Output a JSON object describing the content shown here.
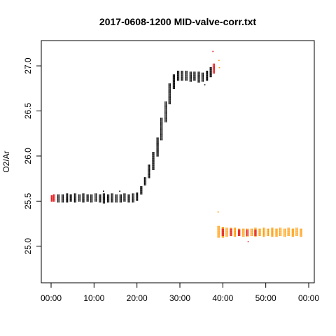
{
  "chart_data": {
    "type": "scatter",
    "title": "2017-0608-1200 MID-valve-corr.txt",
    "xlabel": "",
    "ylabel": "O2/Ar",
    "xlim": [
      0,
      60
    ],
    "ylim": [
      24.68,
      27.28
    ],
    "x_ticks": [
      0,
      10,
      20,
      30,
      40,
      50,
      60
    ],
    "x_tick_labels": [
      "00:00",
      "10:00",
      "20:00",
      "30:00",
      "40:00",
      "50:00",
      "00:00"
    ],
    "y_ticks": [
      25.0,
      25.5,
      26.0,
      26.5,
      27.0
    ],
    "y_tick_labels": [
      "25.0",
      "25.5",
      "26.0",
      "26.5",
      "27.0"
    ],
    "grid": false,
    "legend": "none",
    "colors": {
      "primary": "#000000",
      "start_end": "#e41a1c",
      "after_switch": "#ff9900",
      "after_switch_alt": "#e41a1c"
    },
    "series": [
      {
        "color": "#000000",
        "clusters": [
          {
            "x": 1.7,
            "ymin": 25.49,
            "ymax": 25.57
          },
          {
            "x": 2.7,
            "ymin": 25.49,
            "ymax": 25.57
          },
          {
            "x": 3.7,
            "ymin": 25.49,
            "ymax": 25.58
          },
          {
            "x": 4.6,
            "ymin": 25.5,
            "ymax": 25.57
          },
          {
            "x": 5.6,
            "ymin": 25.49,
            "ymax": 25.58
          },
          {
            "x": 6.6,
            "ymin": 25.5,
            "ymax": 25.57
          },
          {
            "x": 7.5,
            "ymin": 25.49,
            "ymax": 25.58
          },
          {
            "x": 8.5,
            "ymin": 25.5,
            "ymax": 25.57
          },
          {
            "x": 9.4,
            "ymin": 25.49,
            "ymax": 25.57
          },
          {
            "x": 10.4,
            "ymin": 25.5,
            "ymax": 25.58
          },
          {
            "x": 11.4,
            "ymin": 25.49,
            "ymax": 25.57
          },
          {
            "x": 12.3,
            "ymin": 25.48,
            "ymax": 25.58
          },
          {
            "x": 13.3,
            "ymin": 25.49,
            "ymax": 25.57
          },
          {
            "x": 14.2,
            "ymin": 25.49,
            "ymax": 25.58
          },
          {
            "x": 15.2,
            "ymin": 25.49,
            "ymax": 25.57
          },
          {
            "x": 16.2,
            "ymin": 25.49,
            "ymax": 25.57
          },
          {
            "x": 17.1,
            "ymin": 25.5,
            "ymax": 25.58
          },
          {
            "x": 18.1,
            "ymin": 25.49,
            "ymax": 25.57
          },
          {
            "x": 19.1,
            "ymin": 25.49,
            "ymax": 25.58
          },
          {
            "x": 20.0,
            "ymin": 25.51,
            "ymax": 25.59
          },
          {
            "x": 21.0,
            "ymin": 25.58,
            "ymax": 25.66
          },
          {
            "x": 21.9,
            "ymin": 25.68,
            "ymax": 25.76
          },
          {
            "x": 22.8,
            "ymin": 25.76,
            "ymax": 25.9
          },
          {
            "x": 23.8,
            "ymin": 25.85,
            "ymax": 26.04
          },
          {
            "x": 24.8,
            "ymin": 26.0,
            "ymax": 26.2
          },
          {
            "x": 25.7,
            "ymin": 26.18,
            "ymax": 26.42
          },
          {
            "x": 26.7,
            "ymin": 26.38,
            "ymax": 26.6
          },
          {
            "x": 27.6,
            "ymin": 26.58,
            "ymax": 26.8
          },
          {
            "x": 28.6,
            "ymin": 26.75,
            "ymax": 26.9
          },
          {
            "x": 29.6,
            "ymin": 26.84,
            "ymax": 26.94
          },
          {
            "x": 30.5,
            "ymin": 26.84,
            "ymax": 26.94
          },
          {
            "x": 31.5,
            "ymin": 26.84,
            "ymax": 26.94
          },
          {
            "x": 32.5,
            "ymin": 26.83,
            "ymax": 26.93
          },
          {
            "x": 33.4,
            "ymin": 26.84,
            "ymax": 26.93
          },
          {
            "x": 34.4,
            "ymin": 26.82,
            "ymax": 26.93
          },
          {
            "x": 35.3,
            "ymin": 26.83,
            "ymax": 26.92
          },
          {
            "x": 36.3,
            "ymin": 26.84,
            "ymax": 26.94
          },
          {
            "x": 37.2,
            "ymin": 26.88,
            "ymax": 26.98
          }
        ]
      },
      {
        "color": "#e41a1c",
        "clusters": [
          {
            "x": 0.2,
            "ymin": 25.5,
            "ymax": 25.56
          },
          {
            "x": 0.7,
            "ymin": 25.5,
            "ymax": 25.57
          },
          {
            "x": 37.9,
            "ymin": 26.92,
            "ymax": 27.02
          }
        ]
      },
      {
        "color": "#ff9900",
        "clusters": [
          {
            "x": 39.0,
            "ymin": 25.1,
            "ymax": 25.22
          },
          {
            "x": 40.0,
            "ymin": 25.1,
            "ymax": 25.21
          },
          {
            "x": 40.9,
            "ymin": 25.11,
            "ymax": 25.2
          },
          {
            "x": 41.9,
            "ymin": 25.12,
            "ymax": 25.2
          },
          {
            "x": 42.8,
            "ymin": 25.11,
            "ymax": 25.2
          },
          {
            "x": 43.8,
            "ymin": 25.12,
            "ymax": 25.19
          },
          {
            "x": 44.8,
            "ymin": 25.11,
            "ymax": 25.19
          },
          {
            "x": 45.7,
            "ymin": 25.11,
            "ymax": 25.19
          },
          {
            "x": 46.7,
            "ymin": 25.12,
            "ymax": 25.19
          },
          {
            "x": 47.6,
            "ymin": 25.11,
            "ymax": 25.2
          },
          {
            "x": 48.6,
            "ymin": 25.12,
            "ymax": 25.19
          },
          {
            "x": 49.6,
            "ymin": 25.11,
            "ymax": 25.2
          },
          {
            "x": 50.5,
            "ymin": 25.12,
            "ymax": 25.19
          },
          {
            "x": 51.5,
            "ymin": 25.11,
            "ymax": 25.2
          },
          {
            "x": 52.5,
            "ymin": 25.11,
            "ymax": 25.19
          },
          {
            "x": 53.4,
            "ymin": 25.12,
            "ymax": 25.2
          },
          {
            "x": 54.4,
            "ymin": 25.11,
            "ymax": 25.19
          },
          {
            "x": 55.3,
            "ymin": 25.12,
            "ymax": 25.2
          },
          {
            "x": 56.3,
            "ymin": 25.11,
            "ymax": 25.19
          },
          {
            "x": 57.2,
            "ymin": 25.12,
            "ymax": 25.2
          },
          {
            "x": 58.2,
            "ymin": 25.11,
            "ymax": 25.19
          }
        ]
      },
      {
        "color": "#e41a1c",
        "clusters": [
          {
            "x": 40.0,
            "ymin": 25.12,
            "ymax": 25.19
          },
          {
            "x": 41.9,
            "ymin": 25.12,
            "ymax": 25.19
          },
          {
            "x": 43.8,
            "ymin": 25.12,
            "ymax": 25.18
          },
          {
            "x": 45.7,
            "ymin": 25.12,
            "ymax": 25.18
          },
          {
            "x": 47.6,
            "ymin": 25.12,
            "ymax": 25.18
          }
        ]
      }
    ],
    "outliers": [
      {
        "x": 37.7,
        "y": 27.16,
        "color": "#e41a1c"
      },
      {
        "x": 39.2,
        "y": 26.98,
        "color": "#ff9900"
      },
      {
        "x": 39.1,
        "y": 27.06,
        "color": "#ff9900"
      },
      {
        "x": 38.9,
        "y": 25.38,
        "color": "#ff9900"
      },
      {
        "x": 45.9,
        "y": 25.05,
        "color": "#e41a1c"
      },
      {
        "x": 12.2,
        "y": 25.61,
        "color": "#000000"
      },
      {
        "x": 16.0,
        "y": 25.61,
        "color": "#000000"
      },
      {
        "x": 35.8,
        "y": 26.79,
        "color": "#000000"
      }
    ]
  }
}
